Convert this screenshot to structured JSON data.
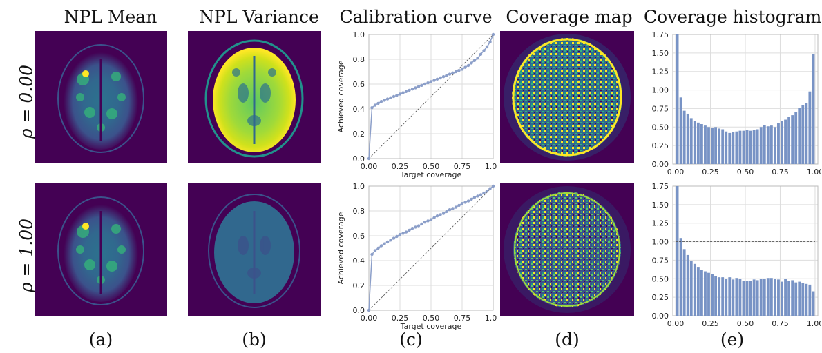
{
  "column_titles": [
    "NPL Mean",
    "NPL Variance",
    "Calibration curve",
    "Coverage map",
    "Coverage histogram"
  ],
  "subfig_labels": [
    "(a)",
    "(b)",
    "(c)",
    "(d)",
    "(e)"
  ],
  "row_labels": [
    "ρ = 0.00",
    "ρ = 1.00"
  ],
  "colors": {
    "viridis_bg": "#440154",
    "line": "#8c9fc9",
    "bar": "#7893c5",
    "ref_line": "#555555",
    "grid": "#dddddd"
  },
  "chart_data": [
    {
      "type": "line",
      "panel": "(c) top",
      "xlabel": "Target coverage",
      "ylabel": "Achieved coverage",
      "xlim": [
        0,
        1
      ],
      "ylim": [
        0,
        1
      ],
      "xticks": [
        "0.00",
        "0.25",
        "0.50",
        "0.75",
        "1.00"
      ],
      "yticks": [
        "0.0",
        "0.2",
        "0.4",
        "0.6",
        "0.8",
        "1.0"
      ],
      "grid": true,
      "x": [
        0.0,
        0.025,
        0.05,
        0.075,
        0.1,
        0.125,
        0.15,
        0.175,
        0.2,
        0.225,
        0.25,
        0.275,
        0.3,
        0.325,
        0.35,
        0.375,
        0.4,
        0.425,
        0.45,
        0.475,
        0.5,
        0.525,
        0.55,
        0.575,
        0.6,
        0.625,
        0.65,
        0.675,
        0.7,
        0.725,
        0.75,
        0.775,
        0.8,
        0.825,
        0.85,
        0.875,
        0.9,
        0.925,
        0.95,
        0.975,
        1.0
      ],
      "y": [
        0.0,
        0.41,
        0.43,
        0.445,
        0.46,
        0.47,
        0.48,
        0.49,
        0.5,
        0.51,
        0.52,
        0.53,
        0.54,
        0.55,
        0.56,
        0.57,
        0.58,
        0.59,
        0.6,
        0.61,
        0.62,
        0.63,
        0.64,
        0.65,
        0.66,
        0.67,
        0.68,
        0.69,
        0.7,
        0.71,
        0.72,
        0.735,
        0.75,
        0.77,
        0.79,
        0.81,
        0.84,
        0.87,
        0.9,
        0.94,
        1.0
      ]
    },
    {
      "type": "line",
      "panel": "(c) bottom",
      "xlabel": "Target coverage",
      "ylabel": "Achieved coverage",
      "xlim": [
        0,
        1
      ],
      "ylim": [
        0,
        1
      ],
      "xticks": [
        "0.00",
        "0.25",
        "0.50",
        "0.75",
        "1.00"
      ],
      "yticks": [
        "0.0",
        "0.2",
        "0.4",
        "0.6",
        "0.8",
        "1.0"
      ],
      "grid": true,
      "x": [
        0.0,
        0.025,
        0.05,
        0.075,
        0.1,
        0.125,
        0.15,
        0.175,
        0.2,
        0.225,
        0.25,
        0.275,
        0.3,
        0.325,
        0.35,
        0.375,
        0.4,
        0.425,
        0.45,
        0.475,
        0.5,
        0.525,
        0.55,
        0.575,
        0.6,
        0.625,
        0.65,
        0.675,
        0.7,
        0.725,
        0.75,
        0.775,
        0.8,
        0.825,
        0.85,
        0.875,
        0.9,
        0.925,
        0.95,
        0.975,
        1.0
      ],
      "y": [
        0.0,
        0.45,
        0.48,
        0.5,
        0.52,
        0.535,
        0.55,
        0.565,
        0.58,
        0.595,
        0.61,
        0.62,
        0.63,
        0.645,
        0.66,
        0.67,
        0.68,
        0.695,
        0.71,
        0.72,
        0.73,
        0.745,
        0.76,
        0.77,
        0.78,
        0.795,
        0.81,
        0.82,
        0.83,
        0.845,
        0.86,
        0.87,
        0.88,
        0.895,
        0.91,
        0.92,
        0.93,
        0.945,
        0.96,
        0.98,
        1.0
      ]
    },
    {
      "type": "bar",
      "panel": "(e) top",
      "xlim": [
        0,
        1
      ],
      "ylim": [
        0,
        1.75
      ],
      "xticks": [
        "0.00",
        "0.25",
        "0.50",
        "0.75",
        "1.00"
      ],
      "yticks": [
        "0.00",
        "0.25",
        "0.50",
        "0.75",
        "1.00",
        "1.25",
        "1.50",
        "1.75"
      ],
      "grid": true,
      "reference_line": 1.0,
      "bin_width": 0.025,
      "values": [
        1.75,
        0.9,
        0.72,
        0.68,
        0.62,
        0.58,
        0.56,
        0.54,
        0.52,
        0.5,
        0.49,
        0.5,
        0.48,
        0.47,
        0.44,
        0.42,
        0.43,
        0.44,
        0.45,
        0.45,
        0.46,
        0.45,
        0.46,
        0.47,
        0.5,
        0.53,
        0.51,
        0.52,
        0.5,
        0.55,
        0.58,
        0.6,
        0.64,
        0.66,
        0.7,
        0.76,
        0.8,
        0.82,
        0.98,
        1.48
      ]
    },
    {
      "type": "bar",
      "panel": "(e) bottom",
      "xlim": [
        0,
        1
      ],
      "ylim": [
        0,
        1.75
      ],
      "xticks": [
        "0.00",
        "0.25",
        "0.50",
        "0.75",
        "1.00"
      ],
      "yticks": [
        "0.00",
        "0.25",
        "0.50",
        "0.75",
        "1.00",
        "1.25",
        "1.50",
        "1.75"
      ],
      "grid": true,
      "reference_line": 1.0,
      "bin_width": 0.025,
      "values": [
        1.75,
        1.05,
        0.9,
        0.82,
        0.74,
        0.7,
        0.66,
        0.62,
        0.6,
        0.58,
        0.56,
        0.54,
        0.52,
        0.52,
        0.5,
        0.52,
        0.49,
        0.51,
        0.5,
        0.47,
        0.47,
        0.47,
        0.49,
        0.48,
        0.5,
        0.5,
        0.51,
        0.51,
        0.5,
        0.49,
        0.46,
        0.5,
        0.47,
        0.48,
        0.45,
        0.46,
        0.44,
        0.43,
        0.42,
        0.33
      ]
    }
  ]
}
